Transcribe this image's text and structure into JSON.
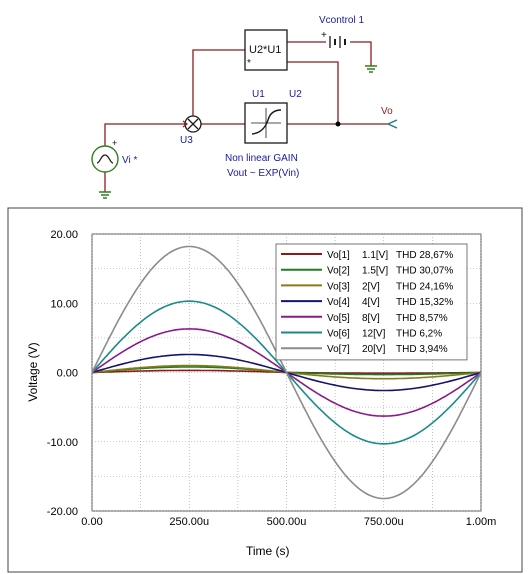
{
  "schematic": {
    "u1_label": "U1",
    "u2_label": "U2",
    "u3_label": "U3",
    "mult_label": "U2*U1",
    "mult_pin": "*",
    "vcontrol_label": "Vcontrol 1",
    "plus_sign": "+",
    "vi_label": "Vi *",
    "vo_label": "Vo",
    "gain_line1": "Non linear GAIN",
    "gain_line2": "Vout ~ EXP(Vin)",
    "colors": {
      "wire": "#8a1e1e",
      "text": "#1a1aa0",
      "ground": "#2e7d1e",
      "node": "#000000"
    }
  },
  "chart_data": {
    "type": "line",
    "xlabel": "Time (s)",
    "ylabel": "Voltage (V)",
    "xlim": [
      0,
      0.001
    ],
    "ylim": [
      -20,
      20
    ],
    "x_ticks": [
      0,
      0.00025,
      0.0005,
      0.00075,
      0.001
    ],
    "x_tick_labels": [
      "0.00",
      "250.00u",
      "500.00u",
      "750.00u",
      "1.00m"
    ],
    "y_ticks": [
      20,
      10,
      0,
      -10,
      -20
    ],
    "y_tick_labels": [
      "20.00",
      "10.00",
      "0.00",
      "-10.00",
      "-20.00"
    ],
    "grid": true,
    "legend_position": "top-right",
    "series": [
      {
        "name": "Vo[1]",
        "amp_label": "1.1[V]",
        "thd_label": "THD 28,67%",
        "color": "#8b1a1a",
        "peak": 0.3,
        "trough": -0.1
      },
      {
        "name": "Vo[2]",
        "amp_label": "1.5[V]",
        "thd_label": "THD 30,07%",
        "color": "#1e7d1e",
        "peak": 0.8,
        "trough": -0.3
      },
      {
        "name": "Vo[3]",
        "amp_label": "2[V]",
        "thd_label": "THD 24,16%",
        "color": "#8a7a1a",
        "peak": 1.0,
        "trough": -0.9
      },
      {
        "name": "Vo[4]",
        "amp_label": "4[V]",
        "thd_label": "THD 15,32%",
        "color": "#14146e",
        "peak": 2.6,
        "trough": -2.6
      },
      {
        "name": "Vo[5]",
        "amp_label": "8[V]",
        "thd_label": "THD 8,57%",
        "color": "#8a1a8a",
        "peak": 6.3,
        "trough": -6.3
      },
      {
        "name": "Vo[6]",
        "amp_label": "12[V]",
        "thd_label": "THD 6,2%",
        "color": "#1a8a8a",
        "peak": 10.3,
        "trough": -10.3
      },
      {
        "name": "Vo[7]",
        "amp_label": "20[V]",
        "thd_label": "THD 3,94%",
        "color": "#8c8c8c",
        "peak": 18.2,
        "trough": -18.2
      }
    ]
  }
}
